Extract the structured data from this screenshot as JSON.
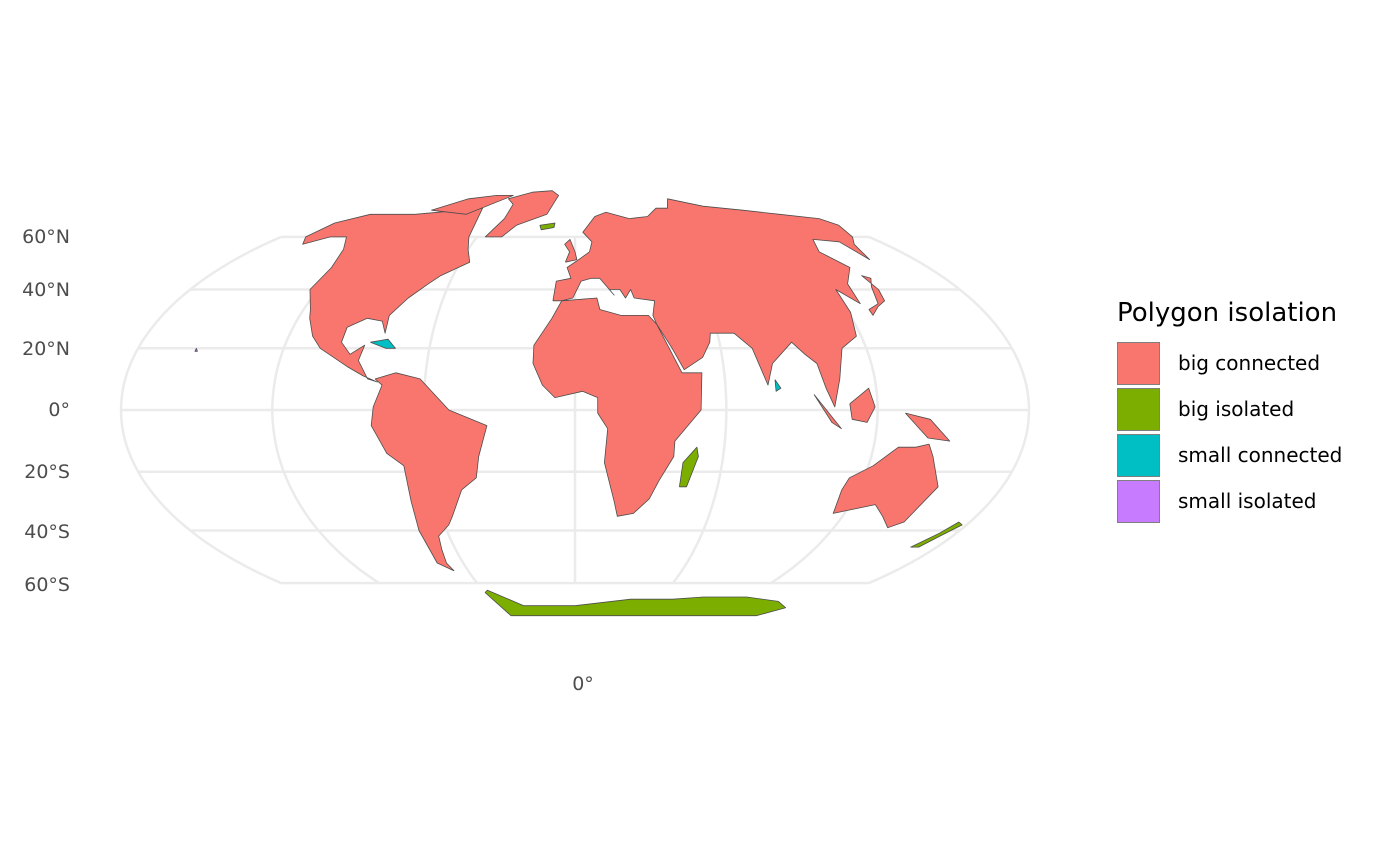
{
  "chart_data": {
    "type": "map",
    "projection": "Mollweide",
    "grid": true,
    "y_ticks": [
      "60°N",
      "40°N",
      "20°N",
      "0°",
      "20°S",
      "40°S",
      "60°S"
    ],
    "x_ticks": [
      "0°"
    ],
    "legend": {
      "title": "Polygon isolation",
      "position": "right",
      "items": [
        {
          "label": "big connected",
          "color": "#F8766D"
        },
        {
          "label": "big isolated",
          "color": "#7CAE00"
        },
        {
          "label": "small connected",
          "color": "#00BFC4"
        },
        {
          "label": "small isolated",
          "color": "#C77CFF"
        }
      ]
    },
    "border_color": "#4d4d4d",
    "grid_color": "#ebebeb"
  }
}
